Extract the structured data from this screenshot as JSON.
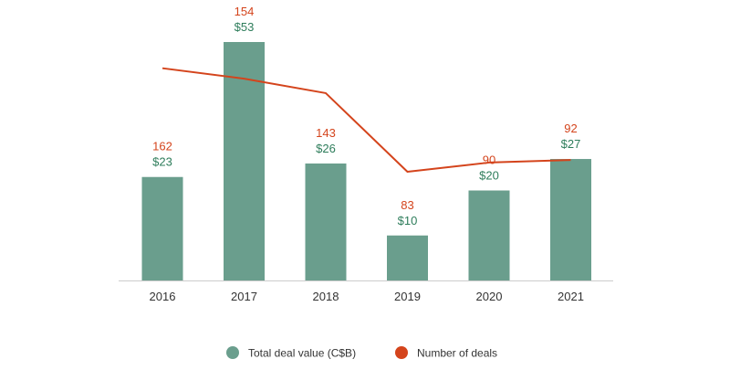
{
  "chart_data": {
    "type": "bar",
    "title": "",
    "xlabel": "",
    "ylabel": "",
    "grid": false,
    "legend_position": "bottom",
    "categories": [
      "2016",
      "2017",
      "2018",
      "2019",
      "2020",
      "2021"
    ],
    "series": [
      {
        "name": "Total deal value (C$B)",
        "kind": "bar",
        "axis": "left",
        "color": "#6a9e8d",
        "label_color": "#2e7d5b",
        "values": [
          23,
          53,
          26,
          10,
          20,
          27
        ],
        "value_labels": [
          "$23",
          "$53",
          "$26",
          "$10",
          "$20",
          "$27"
        ]
      },
      {
        "name": "Number of deals",
        "kind": "line",
        "axis": "right",
        "color": "#d4441c",
        "label_color": "#d4441c",
        "values": [
          162,
          154,
          143,
          83,
          90,
          92
        ],
        "value_labels": [
          "162",
          "154",
          "143",
          "83",
          "90",
          "92"
        ]
      }
    ],
    "ylim_left": [
      0,
      53
    ],
    "ylim_right": [
      0,
      182
    ],
    "legend": [
      {
        "label": "Total deal value (C$B)",
        "color": "#6a9e8d",
        "marker": "circle"
      },
      {
        "label": "Number of deals",
        "color": "#d4441c",
        "marker": "circle"
      }
    ]
  }
}
